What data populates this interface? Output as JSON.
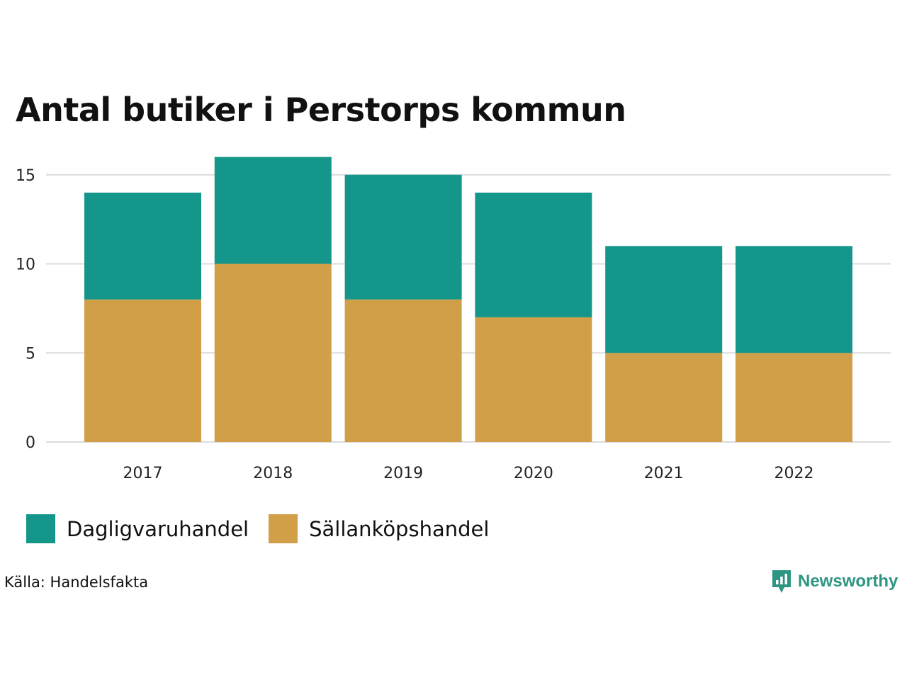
{
  "chart_data": {
    "type": "bar",
    "stacked": true,
    "title": "Antal butiker i Perstorps kommun",
    "categories": [
      "2017",
      "2018",
      "2019",
      "2020",
      "2021",
      "2022"
    ],
    "series": [
      {
        "name": "Sällanköpshandel",
        "color": "#d19f48",
        "values": [
          8,
          10,
          8,
          7,
          5,
          5
        ]
      },
      {
        "name": "Dagligvaruhandel",
        "color": "#15968a",
        "values": [
          6,
          6,
          7,
          7,
          6,
          6
        ]
      }
    ],
    "yticks": [
      "0",
      "5",
      "10",
      "15"
    ],
    "ylim": [
      0,
      16
    ],
    "xlabel": "",
    "ylabel": "",
    "grid": true,
    "legend_position": "bottom-left"
  },
  "legend": {
    "items": [
      {
        "label": "Dagligvaruhandel",
        "color": "#15968a"
      },
      {
        "label": "Sällanköpshandel",
        "color": "#d19f48"
      }
    ]
  },
  "source": "Källa: Handelsfakta",
  "brand": {
    "name": "Newsworthy",
    "color": "#2e9582",
    "icon": "bar-chart-pin-icon"
  }
}
